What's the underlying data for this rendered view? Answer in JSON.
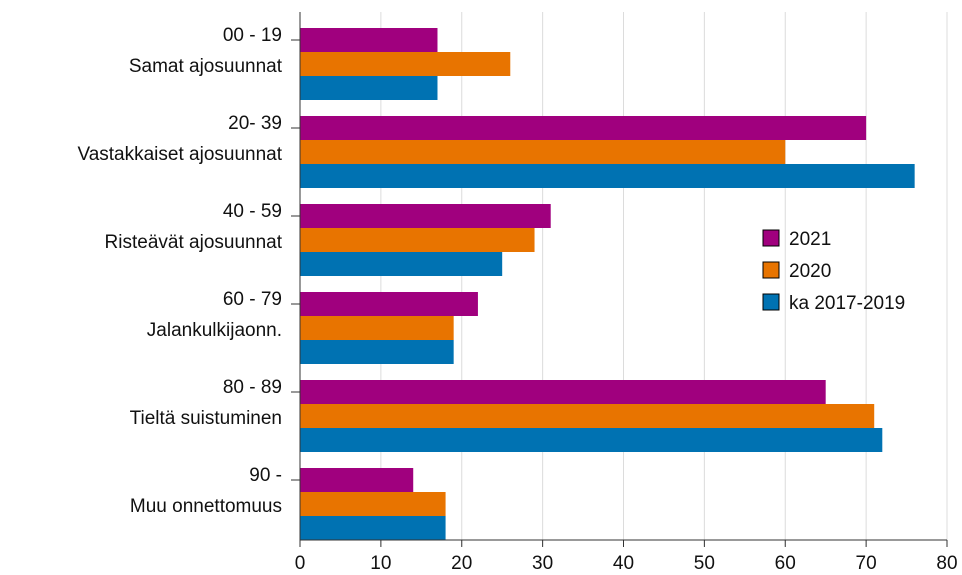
{
  "chart_data": {
    "type": "bar",
    "orientation": "horizontal",
    "categories": [
      [
        "00 - 19",
        "Samat ajosuunnat"
      ],
      [
        "20- 39",
        "Vastakkaiset ajosuunnat"
      ],
      [
        "40 - 59",
        "Risteävät ajosuunnat"
      ],
      [
        "60 - 79",
        "Jalankulkijaonn."
      ],
      [
        "80 - 89",
        "Tieltä suistuminen"
      ],
      [
        "90 -",
        "Muu onnettomuus"
      ]
    ],
    "series": [
      {
        "name": "2021",
        "color": "#a0007e",
        "values": [
          17,
          70,
          31,
          22,
          65,
          14
        ]
      },
      {
        "name": "2020",
        "color": "#e87400",
        "values": [
          26,
          60,
          29,
          19,
          71,
          18
        ]
      },
      {
        "name": "ka 2017-2019",
        "color": "#0072b2",
        "values": [
          17,
          76,
          25,
          19,
          72,
          18
        ]
      }
    ],
    "xlim": [
      0,
      80
    ],
    "xticks": [
      0,
      10,
      20,
      30,
      40,
      50,
      60,
      70,
      80
    ],
    "grid": "vertical",
    "legend_position": "right",
    "title": "",
    "xlabel": "",
    "ylabel": ""
  }
}
